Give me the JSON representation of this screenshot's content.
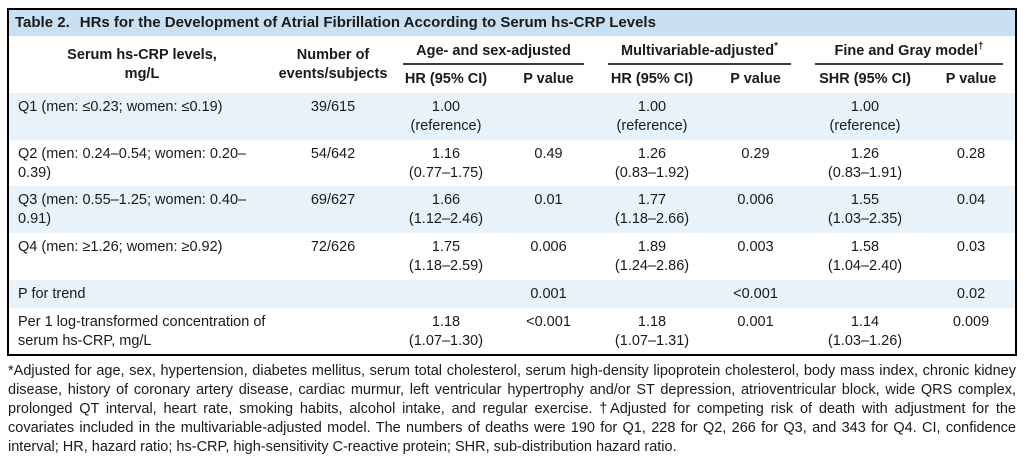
{
  "colors": {
    "title_bar_bg": "#c8e0f2",
    "row_stripe_bg": "#e8f2fa",
    "border": "#000000",
    "text": "#1a1a1a"
  },
  "table": {
    "title_prefix": "Table 2.",
    "title_text": "HRs for the Development of Atrial Fibrillation According to Serum hs-CRP Levels",
    "header": {
      "col1_line1": "Serum hs-CRP levels,",
      "col1_line2": "mg/L",
      "col2_line1": "Number of",
      "col2_line2": "events/subjects",
      "groups": [
        {
          "label": "Age- and sex-adjusted",
          "marker": "",
          "sub1": "HR (95% CI)",
          "sub2": "P value"
        },
        {
          "label": "Multivariable-adjusted",
          "marker": "*",
          "sub1": "HR (95% CI)",
          "sub2": "P value"
        },
        {
          "label": "Fine and Gray model",
          "marker": "†",
          "sub1": "SHR (95% CI)",
          "sub2": "P value"
        }
      ]
    },
    "rows": [
      {
        "label": "Q1 (men: ≤0.23; women: ≤0.19)",
        "events": "39/615",
        "as_hr": "1.00",
        "as_ci": "(reference)",
        "as_p": "",
        "mv_hr": "1.00",
        "mv_ci": "(reference)",
        "mv_p": "",
        "fg_shr": "1.00",
        "fg_ci": "(reference)",
        "fg_p": ""
      },
      {
        "label": "Q2 (men: 0.24–0.54; women: 0.20–0.39)",
        "events": "54/642",
        "as_hr": "1.16",
        "as_ci": "(0.77–1.75)",
        "as_p": "0.49",
        "mv_hr": "1.26",
        "mv_ci": "(0.83–1.92)",
        "mv_p": "0.29",
        "fg_shr": "1.26",
        "fg_ci": "(0.83–1.91)",
        "fg_p": "0.28"
      },
      {
        "label": "Q3 (men: 0.55–1.25; women: 0.40–0.91)",
        "events": "69/627",
        "as_hr": "1.66",
        "as_ci": "(1.12–2.46)",
        "as_p": "0.01",
        "mv_hr": "1.77",
        "mv_ci": "(1.18–2.66)",
        "mv_p": "0.006",
        "fg_shr": "1.55",
        "fg_ci": "(1.03–2.35)",
        "fg_p": "0.04"
      },
      {
        "label": "Q4 (men: ≥1.26; women: ≥0.92)",
        "events": "72/626",
        "as_hr": "1.75",
        "as_ci": "(1.18–2.59)",
        "as_p": "0.006",
        "mv_hr": "1.89",
        "mv_ci": "(1.24–2.86)",
        "mv_p": "0.003",
        "fg_shr": "1.58",
        "fg_ci": "(1.04–2.40)",
        "fg_p": "0.03"
      },
      {
        "label": "P for trend",
        "events": "",
        "as_hr": "",
        "as_ci": "",
        "as_p": "0.001",
        "mv_hr": "",
        "mv_ci": "",
        "mv_p": "<0.001",
        "fg_shr": "",
        "fg_ci": "",
        "fg_p": "0.02"
      },
      {
        "label": "Per 1 log-transformed concentration of serum hs-CRP, mg/L",
        "events": "",
        "as_hr": "1.18",
        "as_ci": "(1.07–1.30)",
        "as_p": "<0.001",
        "mv_hr": "1.18",
        "mv_ci": "(1.07–1.31)",
        "mv_p": "0.001",
        "fg_shr": "1.14",
        "fg_ci": "(1.03–1.26)",
        "fg_p": "0.009"
      }
    ]
  },
  "footnote": "*Adjusted for age, sex, hypertension, diabetes mellitus, serum total cholesterol, serum high-density lipoprotein cholesterol, body mass index, chronic kidney disease, history of coronary artery disease, cardiac murmur, left ventricular hypertrophy and/or ST depression, atrioventricular block, wide QRS complex, prolonged QT interval, heart rate, smoking habits, alcohol intake, and regular exercise. †Adjusted for competing risk of death with adjustment for the covariates included in the multivariable-adjusted model. The numbers of deaths were 190 for Q1, 228 for Q2, 266 for Q3, and 343 for Q4. CI, confidence interval; HR, hazard ratio; hs-CRP, high-sensitivity C-reactive protein; SHR, sub-distribution hazard ratio."
}
